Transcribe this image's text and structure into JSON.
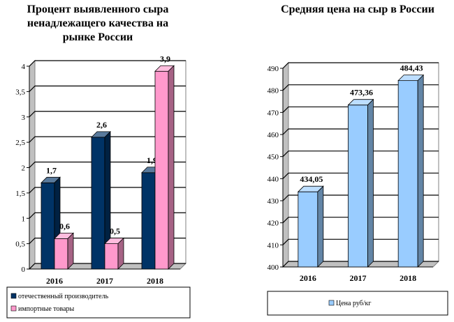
{
  "chart_data": [
    {
      "type": "bar",
      "title_lines": [
        "Процент выявленного сыра",
        "ненадлежащего качества на",
        "рынке России"
      ],
      "categories": [
        "2016",
        "2017",
        "2018"
      ],
      "ylim": [
        0,
        4
      ],
      "yticks": [
        "0",
        "0,5",
        "1",
        "1,5",
        "2",
        "2,5",
        "3",
        "3,5",
        "4"
      ],
      "ytick_values": [
        0,
        0.5,
        1,
        1.5,
        2,
        2.5,
        3,
        3.5,
        4
      ],
      "grid": true,
      "legend_position": "bottom",
      "series": [
        {
          "name": "отечественный производитель",
          "color": "#003366",
          "values": [
            1.7,
            2.6,
            1.9
          ],
          "labels": [
            "1,7",
            "2,6",
            "1,9"
          ]
        },
        {
          "name": "импортные товары",
          "color": "#ff99cc",
          "values": [
            0.6,
            0.5,
            3.9
          ],
          "labels": [
            "0,6",
            "0,5",
            "3,9"
          ]
        }
      ]
    },
    {
      "type": "bar",
      "title_lines": [
        "Средняя цена на сыр в России"
      ],
      "categories": [
        "2016",
        "2017",
        "2018"
      ],
      "ylim": [
        400,
        490
      ],
      "yticks": [
        "400",
        "410",
        "420",
        "430",
        "440",
        "450",
        "460",
        "470",
        "480",
        "490"
      ],
      "ytick_values": [
        400,
        410,
        420,
        430,
        440,
        450,
        460,
        470,
        480,
        490
      ],
      "grid": true,
      "legend_position": "bottom",
      "series": [
        {
          "name": "Цена руб/кг",
          "color": "#99ccff",
          "values": [
            434.05,
            473.36,
            484.43
          ],
          "labels": [
            "434,05",
            "473,36",
            "484,43"
          ]
        }
      ]
    }
  ]
}
